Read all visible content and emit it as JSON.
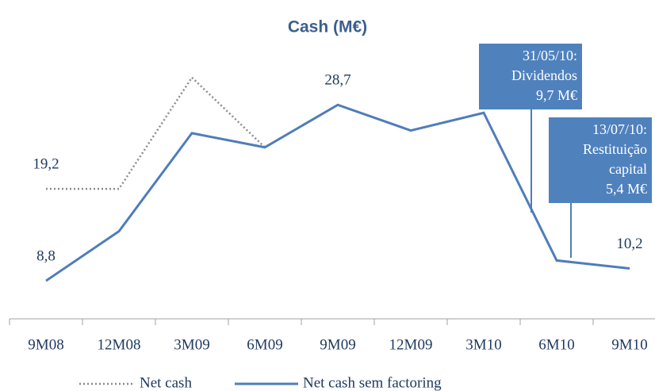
{
  "chart_data": {
    "type": "line",
    "title": "Cash (M€)",
    "categories": [
      "9M08",
      "12M08",
      "3M09",
      "6M09",
      "9M09",
      "12M09",
      "3M10",
      "6M10",
      "9M10"
    ],
    "series": [
      {
        "name": "Net cash",
        "color": "#8c8c8c",
        "dash": "dotted",
        "values": [
          19.2,
          19.2,
          31.8,
          23.9,
          null,
          null,
          null,
          null,
          null
        ],
        "value_labels": [
          "19,2",
          null,
          null,
          null,
          null,
          null,
          null,
          null,
          null
        ]
      },
      {
        "name": "Net cash sem factoring",
        "color": "#4f7dba",
        "dash": "solid",
        "values": [
          8.8,
          14.4,
          25.5,
          23.9,
          28.7,
          25.8,
          27.8,
          11.1,
          10.2
        ],
        "value_labels": [
          "8,8",
          null,
          null,
          null,
          "28,7",
          null,
          null,
          null,
          "10,2"
        ]
      }
    ],
    "ylim": [
      4.5,
      35
    ],
    "legend": "bottom",
    "annotations": [
      {
        "lines": [
          "31/05/10:",
          "Dividendos",
          "9,7 M€"
        ]
      },
      {
        "lines": [
          "13/07/10:",
          "Restituição",
          "capital",
          "5,4 M€"
        ]
      }
    ]
  }
}
